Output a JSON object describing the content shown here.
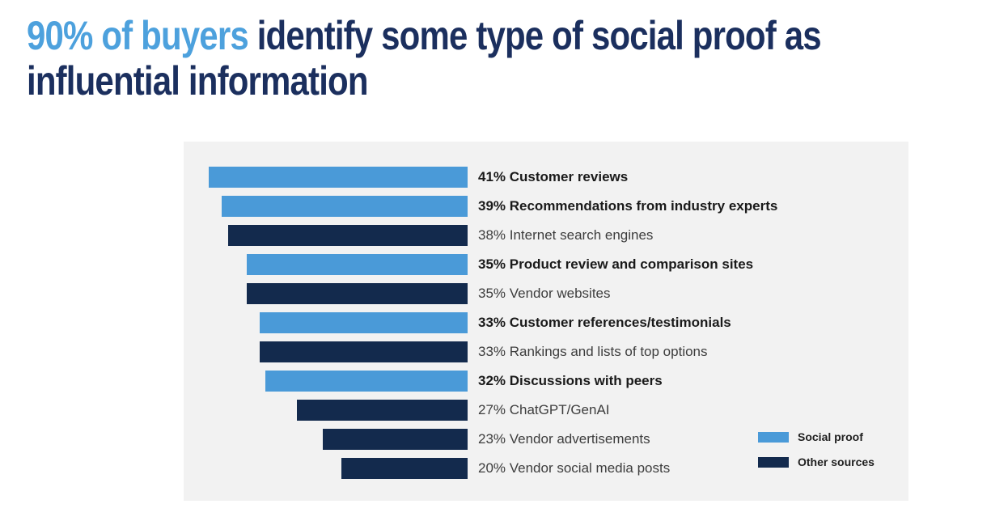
{
  "title": {
    "highlight": "90% of buyers",
    "rest_line1": "identify some type of social proof as",
    "line2": "influential information"
  },
  "colors": {
    "title_highlight": "#4da1dd",
    "title_text": "#1b2f5e",
    "social_proof": "#4a9ad8",
    "other_sources": "#132a4d",
    "panel_bg": "#f2f2f2",
    "label_bold": "#1a1a1a",
    "label_regular": "#3d3d3d",
    "legend_text": "#1f1f1f"
  },
  "chart_data": {
    "type": "bar",
    "orientation": "horizontal-right-aligned",
    "title": "90% of buyers identify some type of social proof as influential information",
    "unit": "%",
    "xlim": [
      0,
      45
    ],
    "axis_visible": false,
    "grid": false,
    "legend_position": "bottom-right",
    "categories": [
      "Customer reviews",
      "Recommendations from industry experts",
      "Internet search engines",
      "Product review and comparison sites",
      "Vendor websites",
      "Customer references/testimonials",
      "Rankings and lists of top options",
      "Discussions with peers",
      "ChatGPT/GenAI",
      "Vendor advertisements",
      "Vendor social media posts"
    ],
    "values": [
      41,
      39,
      38,
      35,
      35,
      33,
      33,
      32,
      27,
      23,
      20
    ],
    "items": [
      {
        "value": 41,
        "label": "Customer reviews",
        "series": "Social proof"
      },
      {
        "value": 39,
        "label": "Recommendations from industry experts",
        "series": "Social proof"
      },
      {
        "value": 38,
        "label": "Internet search engines",
        "series": "Other sources"
      },
      {
        "value": 35,
        "label": "Product review and comparison sites",
        "series": "Social proof"
      },
      {
        "value": 35,
        "label": "Vendor websites",
        "series": "Other sources"
      },
      {
        "value": 33,
        "label": "Customer references/testimonials",
        "series": "Social proof"
      },
      {
        "value": 33,
        "label": "Rankings and lists of top options",
        "series": "Other sources"
      },
      {
        "value": 32,
        "label": "Discussions with peers",
        "series": "Social proof"
      },
      {
        "value": 27,
        "label": "ChatGPT/GenAI",
        "series": "Other sources"
      },
      {
        "value": 23,
        "label": "Vendor advertisements",
        "series": "Other sources"
      },
      {
        "value": 20,
        "label": "Vendor social media posts",
        "series": "Other sources"
      }
    ],
    "legend": [
      {
        "label": "Social proof",
        "color_key": "social_proof"
      },
      {
        "label": "Other sources",
        "color_key": "other_sources"
      }
    ]
  }
}
